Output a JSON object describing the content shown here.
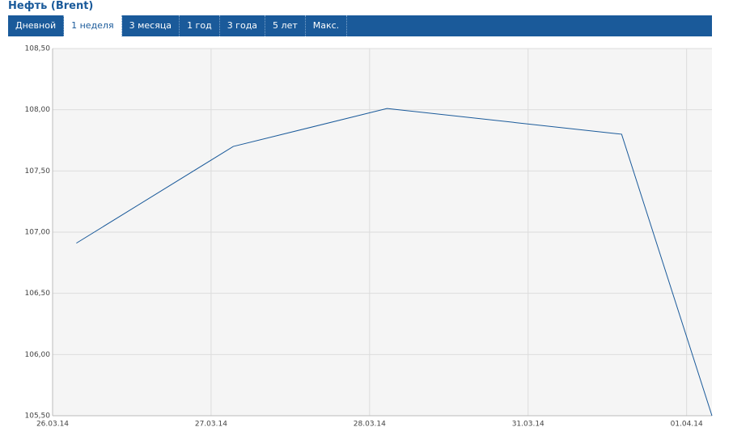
{
  "chart_data": {
    "type": "line",
    "title": "Нефть (Brent)",
    "tabs": [
      "Дневной",
      "1 неделя",
      "3 месяца",
      "1 год",
      "3 года",
      "5 лет",
      "Макс."
    ],
    "selected_tab": 1,
    "x": [
      0.15,
      1.14,
      2.11,
      3.59,
      4.16
    ],
    "series": [
      {
        "color": "#1a5a9a",
        "values": [
          106.91,
          107.7,
          108.01,
          107.8,
          105.5
        ]
      }
    ],
    "xlim": [
      0,
      4.16
    ],
    "xticks": [
      {
        "value": 0,
        "label": "26.03.14"
      },
      {
        "value": 1,
        "label": "27.03.14"
      },
      {
        "value": 2,
        "label": "28.03.14"
      },
      {
        "value": 3,
        "label": "31.03.14"
      },
      {
        "value": 4,
        "label": "01.04.14"
      }
    ],
    "ylim": [
      105.5,
      108.5
    ],
    "yticks": [
      {
        "value": 105.5,
        "label": "105,50"
      },
      {
        "value": 106,
        "label": "106,00"
      },
      {
        "value": 106.5,
        "label": "106,50"
      },
      {
        "value": 107,
        "label": "107,00"
      },
      {
        "value": 107.5,
        "label": "107,50"
      },
      {
        "value": 108,
        "label": "108,00"
      },
      {
        "value": 108.5,
        "label": "108,50"
      }
    ],
    "grid": true
  }
}
